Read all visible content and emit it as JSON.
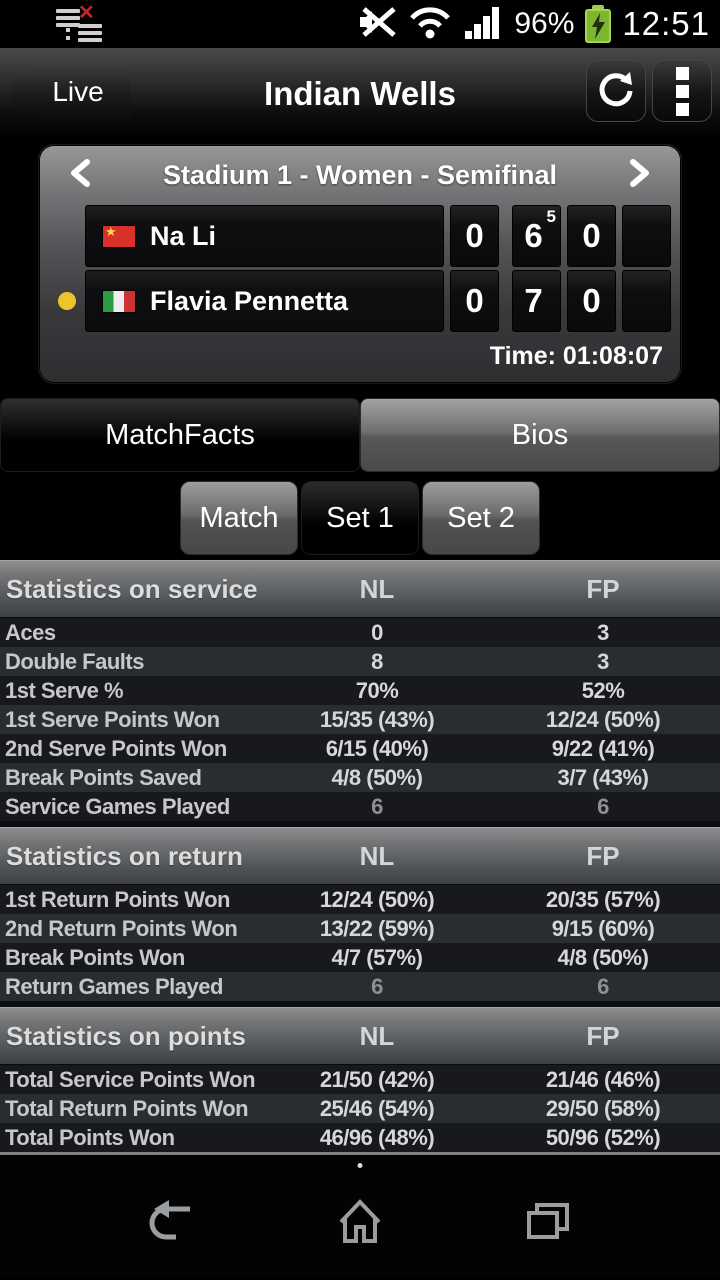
{
  "status_bar": {
    "time": "12:51",
    "battery_percent": "96%",
    "left_icons": [
      "notification-download-error",
      "notification-list"
    ],
    "right_icons": [
      "mute-icon",
      "wifi-icon",
      "signal-icon",
      "battery-charging-icon"
    ]
  },
  "header": {
    "back_label": "Live",
    "title": "Indian Wells",
    "actions": [
      "refresh",
      "overflow-menu"
    ]
  },
  "scoreboard": {
    "title": "Stadium 1 - Women - Semifinal",
    "time_label": "Time: 01:08:07",
    "players": [
      {
        "name": "Na Li",
        "flag": "China",
        "serving": false,
        "points": "0",
        "sets": [
          {
            "games": "6",
            "tiebreak": "5"
          },
          {
            "games": "0"
          },
          {
            "games": ""
          }
        ]
      },
      {
        "name": "Flavia Pennetta",
        "flag": "Italy",
        "serving": true,
        "points": "0",
        "sets": [
          {
            "games": "7"
          },
          {
            "games": "0"
          },
          {
            "games": ""
          }
        ]
      }
    ]
  },
  "tabs": [
    {
      "label": "MatchFacts",
      "selected": true
    },
    {
      "label": "Bios",
      "selected": false
    }
  ],
  "subtabs": [
    {
      "label": "Match",
      "selected": false
    },
    {
      "label": "Set 1",
      "selected": true
    },
    {
      "label": "Set 2",
      "selected": false
    }
  ],
  "stats": {
    "player_col_1": "NL",
    "player_col_2": "FP",
    "sections": [
      {
        "title": "Statistics on service",
        "rows": [
          {
            "label": "Aces",
            "nl": "0",
            "fp": "3"
          },
          {
            "label": "Double Faults",
            "nl": "8",
            "fp": "3"
          },
          {
            "label": "1st Serve %",
            "nl": "70%",
            "fp": "52%"
          },
          {
            "label": "1st Serve Points Won",
            "nl": "15/35 (43%)",
            "fp": "12/24 (50%)"
          },
          {
            "label": "2nd Serve Points Won",
            "nl": "6/15 (40%)",
            "fp": "9/22 (41%)"
          },
          {
            "label": "Break Points Saved",
            "nl": "4/8 (50%)",
            "fp": "3/7 (43%)"
          },
          {
            "label": "Service Games Played",
            "nl": "6",
            "fp": "6",
            "dim": true
          }
        ]
      },
      {
        "title": "Statistics on return",
        "rows": [
          {
            "label": "1st Return Points Won",
            "nl": "12/24 (50%)",
            "fp": "20/35 (57%)"
          },
          {
            "label": "2nd Return Points Won",
            "nl": "13/22 (59%)",
            "fp": "9/15 (60%)"
          },
          {
            "label": "Break Points Won",
            "nl": "4/7 (57%)",
            "fp": "4/8 (50%)"
          },
          {
            "label": "Return Games Played",
            "nl": "6",
            "fp": "6",
            "dim": true
          }
        ]
      },
      {
        "title": "Statistics on points",
        "rows": [
          {
            "label": "Total Service Points Won",
            "nl": "21/50 (42%)",
            "fp": "21/46 (46%)"
          },
          {
            "label": "Total Return Points Won",
            "nl": "25/46 (54%)",
            "fp": "29/50 (58%)"
          },
          {
            "label": "Total Points Won",
            "nl": "46/96 (48%)",
            "fp": "50/96 (52%)"
          }
        ]
      }
    ]
  },
  "nav_bar": {
    "icons": [
      "back",
      "home",
      "recents"
    ]
  },
  "colors": {
    "serve_indicator": "#edc42e",
    "battery_green": "#7cb82f",
    "notification_error_red": "#c0272d",
    "row_dark": "#17191c",
    "row_light": "#2a2d30"
  }
}
